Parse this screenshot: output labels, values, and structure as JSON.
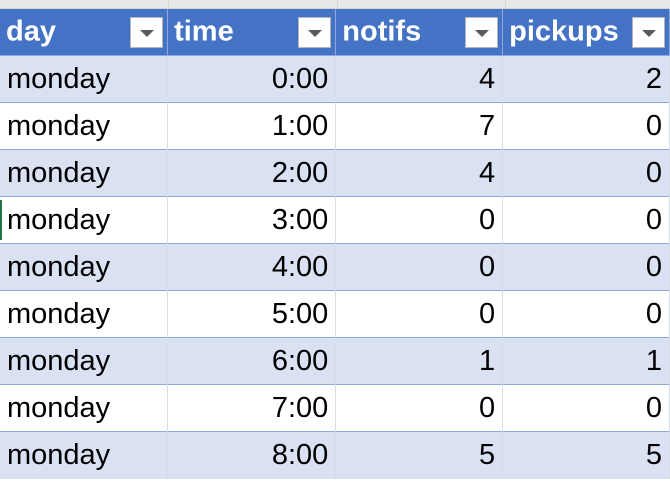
{
  "table": {
    "headers": [
      {
        "key": "day",
        "label": "day"
      },
      {
        "key": "time",
        "label": "time"
      },
      {
        "key": "notifs",
        "label": "notifs"
      },
      {
        "key": "pickups",
        "label": "pickups"
      }
    ],
    "rows": [
      {
        "day": "monday",
        "time": "0:00",
        "notifs": "4",
        "pickups": "2"
      },
      {
        "day": "monday",
        "time": "1:00",
        "notifs": "7",
        "pickups": "0"
      },
      {
        "day": "monday",
        "time": "2:00",
        "notifs": "4",
        "pickups": "0"
      },
      {
        "day": "monday",
        "time": "3:00",
        "notifs": "0",
        "pickups": "0"
      },
      {
        "day": "monday",
        "time": "4:00",
        "notifs": "0",
        "pickups": "0"
      },
      {
        "day": "monday",
        "time": "5:00",
        "notifs": "0",
        "pickups": "0"
      },
      {
        "day": "monday",
        "time": "6:00",
        "notifs": "1",
        "pickups": "1"
      },
      {
        "day": "monday",
        "time": "7:00",
        "notifs": "0",
        "pickups": "0"
      },
      {
        "day": "monday",
        "time": "8:00",
        "notifs": "5",
        "pickups": "5"
      }
    ]
  },
  "icons": {
    "filter": "filter-dropdown-icon"
  },
  "colors": {
    "header_bg": "#4472c4",
    "header_text": "#ffffff",
    "band_row": "#d9e1f2",
    "plain_row": "#ffffff",
    "row_border": "#8ea9db"
  }
}
